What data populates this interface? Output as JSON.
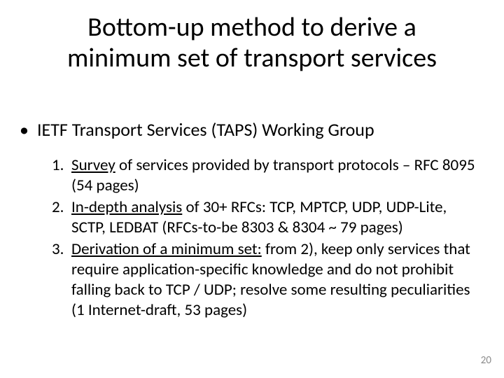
{
  "title": {
    "line1": "Bottom-up method to derive a",
    "line2": "minimum set of transport services"
  },
  "bullet": {
    "marker": "•",
    "text": "IETF Transport Services (TAPS) Working Group"
  },
  "items": [
    {
      "marker": "1.",
      "lead": "Survey",
      "rest": " of services provided by transport protocols – RFC 8095 (54 pages)"
    },
    {
      "marker": "2.",
      "lead": "In-depth analysis",
      "rest": " of 30+ RFCs: TCP,  MPTCP, UDP, UDP-Lite, SCTP, LEDBAT (RFCs-to-be 8303 & 8304 ~ 79 pages)"
    },
    {
      "marker": "3.",
      "lead": "Derivation of a minimum set:",
      "rest": " from 2), keep only services that require application-specific knowledge and do not prohibit falling back to TCP / UDP; resolve some resulting peculiarities",
      "tail": "(1 Internet-draft, 53 pages)"
    }
  ],
  "page_number": "20",
  "colors": {
    "background": "#ffffff",
    "text": "#000000",
    "page_number": "#8b8b8b"
  },
  "fonts": {
    "title_size_pt": 38,
    "bullet_size_pt": 26,
    "list_size_pt": 23,
    "pagenum_size_pt": 15
  }
}
